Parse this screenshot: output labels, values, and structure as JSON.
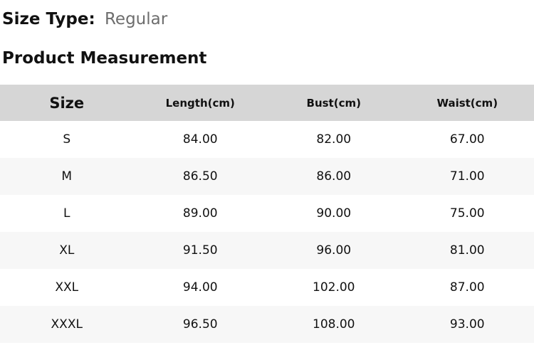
{
  "size_type": {
    "label": "Size Type:",
    "value": "Regular"
  },
  "section_title": "Product Measurement",
  "table": {
    "headers": [
      "Size",
      "Length(cm)",
      "Bust(cm)",
      "Waist(cm)"
    ],
    "rows": [
      [
        "S",
        "84.00",
        "82.00",
        "67.00"
      ],
      [
        "M",
        "86.50",
        "86.00",
        "71.00"
      ],
      [
        "L",
        "89.00",
        "90.00",
        "75.00"
      ],
      [
        "XL",
        "91.50",
        "96.00",
        "81.00"
      ],
      [
        "XXL",
        "94.00",
        "102.00",
        "87.00"
      ],
      [
        "XXXL",
        "96.50",
        "108.00",
        "93.00"
      ]
    ]
  },
  "colors": {
    "header_bg": "#d6d6d6",
    "row_alt_bg": "#f7f7f7",
    "row_bg": "#ffffff",
    "text": "#111111",
    "muted": "#6d6d6d"
  }
}
